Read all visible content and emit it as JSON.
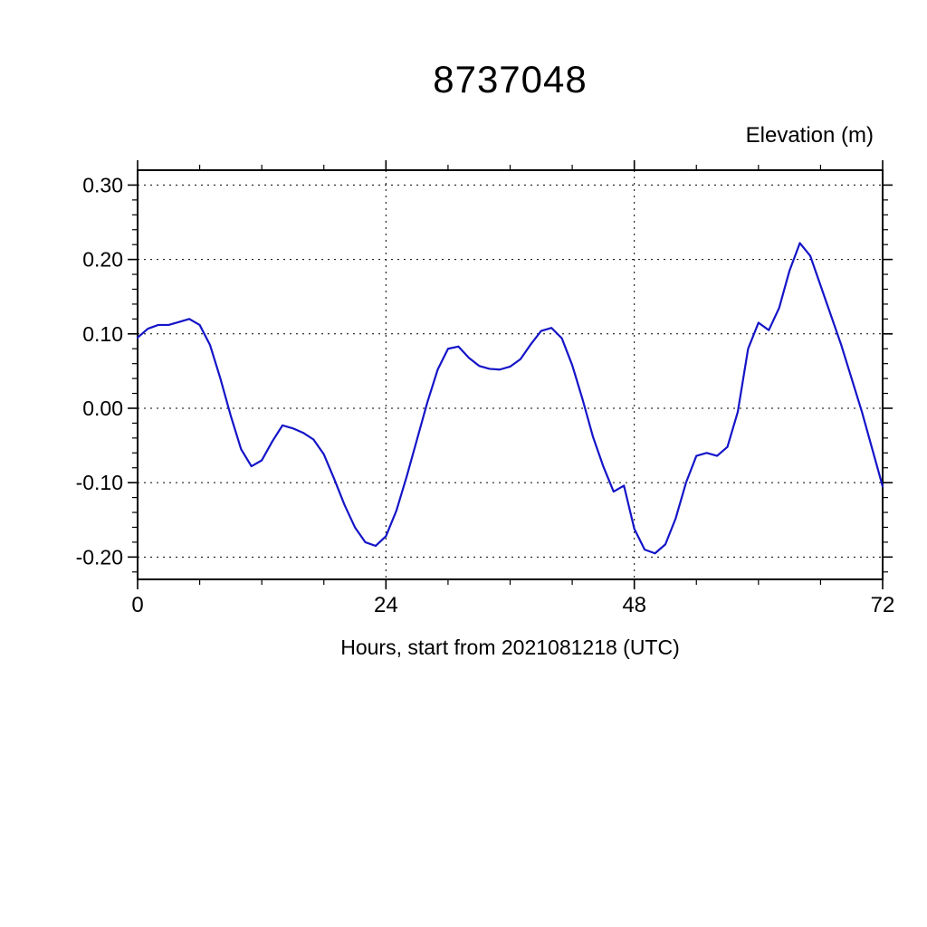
{
  "chart_data": {
    "type": "line",
    "title": "8737048",
    "ylabel": "Elevation (m)",
    "xlabel": "Hours, start from 2021081218 (UTC)",
    "line_color": "#1414c8",
    "grid": true,
    "xlim": [
      0,
      72
    ],
    "ylim": [
      -0.23,
      0.32
    ],
    "xticks": [
      0,
      24,
      48,
      72
    ],
    "xtick_labels": [
      "0",
      "24",
      "48",
      "72"
    ],
    "x_minor_step": 6,
    "yticks": [
      0.3,
      0.2,
      0.1,
      0.0,
      -0.1,
      -0.2
    ],
    "ytick_labels": [
      "0.30",
      "0.20",
      "0.10",
      "0.00",
      "-0.10",
      "-0.20"
    ],
    "y_minor_step": 0.02,
    "x": [
      0,
      1,
      2,
      3,
      4,
      5,
      6,
      7,
      8,
      9,
      10,
      11,
      12,
      13,
      14,
      15,
      16,
      17,
      18,
      19,
      20,
      21,
      22,
      23,
      24,
      25,
      26,
      27,
      28,
      29,
      30,
      31,
      32,
      33,
      34,
      35,
      36,
      37,
      38,
      39,
      40,
      41,
      42,
      43,
      44,
      45,
      46,
      47,
      48,
      49,
      50,
      51,
      52,
      53,
      54,
      55,
      56,
      57,
      58,
      59,
      60,
      61,
      62,
      63,
      64,
      65,
      66,
      67,
      68,
      69,
      70,
      71,
      72
    ],
    "values": [
      0.095,
      0.107,
      0.112,
      0.112,
      0.116,
      0.12,
      0.112,
      0.085,
      0.04,
      -0.01,
      -0.055,
      -0.078,
      -0.07,
      -0.045,
      -0.023,
      -0.027,
      -0.033,
      -0.042,
      -0.062,
      -0.095,
      -0.13,
      -0.16,
      -0.18,
      -0.185,
      -0.172,
      -0.138,
      -0.092,
      -0.042,
      0.008,
      0.052,
      0.08,
      0.083,
      0.068,
      0.057,
      0.053,
      0.052,
      0.056,
      0.066,
      0.086,
      0.104,
      0.108,
      0.094,
      0.058,
      0.012,
      -0.038,
      -0.078,
      -0.112,
      -0.104,
      -0.162,
      -0.19,
      -0.195,
      -0.183,
      -0.148,
      -0.1,
      -0.064,
      -0.06,
      -0.064,
      -0.052,
      -0.005,
      0.08,
      0.115,
      0.105,
      0.135,
      0.185,
      0.222,
      0.205,
      0.165,
      0.125,
      0.085,
      0.04,
      -0.005,
      -0.055,
      -0.105
    ]
  }
}
